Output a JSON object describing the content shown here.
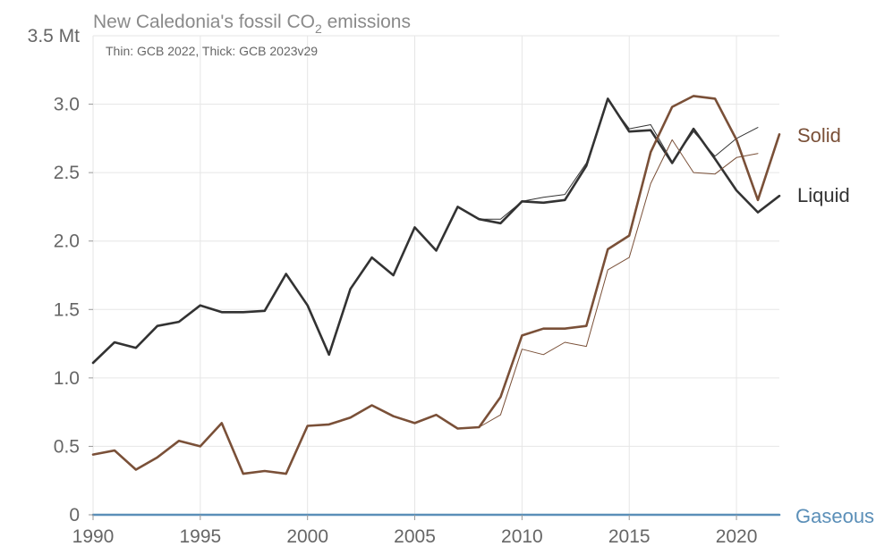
{
  "chart_data": {
    "type": "line",
    "title_main": "New Caledonia's fossil CO",
    "title_sub": "2",
    "title_tail": " emissions",
    "subtitle": "Thin: GCB 2022, Thick: GCB 2023v29",
    "y_top_label": "3.5 Mt",
    "xlim": [
      1990,
      2022
    ],
    "ylim": [
      0,
      3.5
    ],
    "x_ticks": [
      1990,
      1995,
      2000,
      2005,
      2010,
      2015,
      2020
    ],
    "x_tick_labels": [
      "1990",
      "1995",
      "2000",
      "2005",
      "2010",
      "2015",
      "2020"
    ],
    "y_ticks": [
      0,
      0.5,
      1.0,
      1.5,
      2.0,
      2.5,
      3.0
    ],
    "y_tick_labels": [
      "0",
      "0.5",
      "1.0",
      "1.5",
      "2.0",
      "2.5",
      "3.0"
    ],
    "grid": true,
    "colors": {
      "liquid": "#333333",
      "solid": "#7a5038",
      "gaseous": "#5b8fb8"
    },
    "series": [
      {
        "name": "Liquid",
        "dataset": "GCB 2023v29",
        "style": "thick",
        "color_key": "liquid",
        "x": [
          1990,
          1991,
          1992,
          1993,
          1994,
          1995,
          1996,
          1997,
          1998,
          1999,
          2000,
          2001,
          2002,
          2003,
          2004,
          2005,
          2006,
          2007,
          2008,
          2009,
          2010,
          2011,
          2012,
          2013,
          2014,
          2015,
          2016,
          2017,
          2018,
          2019,
          2020,
          2021,
          2022
        ],
        "values": [
          1.11,
          1.26,
          1.22,
          1.38,
          1.41,
          1.53,
          1.48,
          1.48,
          1.49,
          1.76,
          1.53,
          1.17,
          1.65,
          1.88,
          1.75,
          2.1,
          1.93,
          2.25,
          2.16,
          2.13,
          2.29,
          2.28,
          2.3,
          2.55,
          3.04,
          2.8,
          2.81,
          2.57,
          2.82,
          2.6,
          2.37,
          2.21,
          2.33
        ]
      },
      {
        "name": "Liquid",
        "dataset": "GCB 2022",
        "style": "thin",
        "color_key": "liquid",
        "x": [
          1990,
          1991,
          1992,
          1993,
          1994,
          1995,
          1996,
          1997,
          1998,
          1999,
          2000,
          2001,
          2002,
          2003,
          2004,
          2005,
          2006,
          2007,
          2008,
          2009,
          2010,
          2011,
          2012,
          2013,
          2014,
          2015,
          2016,
          2017,
          2018,
          2019,
          2020,
          2021
        ],
        "values": [
          1.11,
          1.26,
          1.22,
          1.38,
          1.41,
          1.53,
          1.48,
          1.48,
          1.49,
          1.76,
          1.53,
          1.17,
          1.65,
          1.88,
          1.75,
          2.1,
          1.93,
          2.25,
          2.16,
          2.16,
          2.29,
          2.32,
          2.34,
          2.57,
          3.03,
          2.82,
          2.85,
          2.58,
          2.8,
          2.62,
          2.75,
          2.83
        ]
      },
      {
        "name": "Solid",
        "dataset": "GCB 2023v29",
        "style": "thick",
        "color_key": "solid",
        "x": [
          1990,
          1991,
          1992,
          1993,
          1994,
          1995,
          1996,
          1997,
          1998,
          1999,
          2000,
          2001,
          2002,
          2003,
          2004,
          2005,
          2006,
          2007,
          2008,
          2009,
          2010,
          2011,
          2012,
          2013,
          2014,
          2015,
          2016,
          2017,
          2018,
          2019,
          2020,
          2021,
          2022
        ],
        "values": [
          0.44,
          0.47,
          0.33,
          0.42,
          0.54,
          0.5,
          0.67,
          0.3,
          0.32,
          0.3,
          0.65,
          0.66,
          0.71,
          0.8,
          0.72,
          0.67,
          0.73,
          0.63,
          0.64,
          0.86,
          1.31,
          1.36,
          1.36,
          1.38,
          1.94,
          2.04,
          2.65,
          2.98,
          3.06,
          3.04,
          2.74,
          2.3,
          2.78
        ]
      },
      {
        "name": "Solid",
        "dataset": "GCB 2022",
        "style": "thin",
        "color_key": "solid",
        "x": [
          1990,
          1991,
          1992,
          1993,
          1994,
          1995,
          1996,
          1997,
          1998,
          1999,
          2000,
          2001,
          2002,
          2003,
          2004,
          2005,
          2006,
          2007,
          2008,
          2009,
          2010,
          2011,
          2012,
          2013,
          2014,
          2015,
          2016,
          2017,
          2018,
          2019,
          2020,
          2021
        ],
        "values": [
          0.44,
          0.47,
          0.33,
          0.42,
          0.54,
          0.5,
          0.67,
          0.3,
          0.32,
          0.3,
          0.65,
          0.66,
          0.71,
          0.8,
          0.72,
          0.67,
          0.73,
          0.63,
          0.64,
          0.73,
          1.21,
          1.17,
          1.26,
          1.23,
          1.79,
          1.88,
          2.42,
          2.74,
          2.5,
          2.49,
          2.61,
          2.64
        ]
      },
      {
        "name": "Gaseous",
        "dataset": "GCB 2023v29",
        "style": "thick",
        "color_key": "gaseous",
        "x": [
          1990,
          2022
        ],
        "values": [
          0,
          0
        ]
      }
    ],
    "end_labels": [
      {
        "text": "Solid",
        "color_key": "solid"
      },
      {
        "text": "Liquid",
        "color_key": "liquid"
      },
      {
        "text": "Gaseous",
        "color_key": "gaseous"
      }
    ]
  }
}
